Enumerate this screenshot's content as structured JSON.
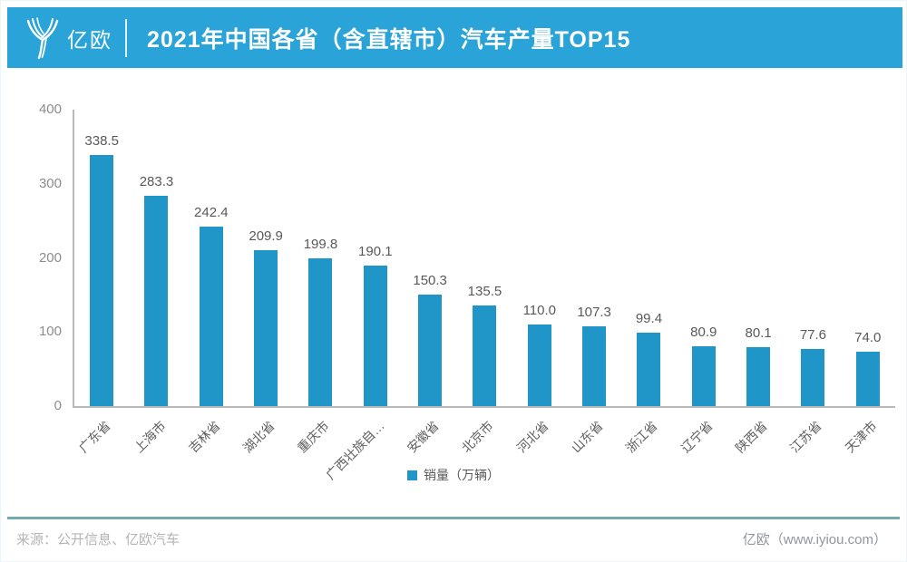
{
  "header": {
    "logo_text": "亿欧",
    "title": "2021年中国各省（含直辖市）汽车产量TOP15"
  },
  "chart_data": {
    "type": "bar",
    "title": "2021年中国各省（含直辖市）汽车产量TOP15",
    "categories": [
      "广东省",
      "上海市",
      "吉林省",
      "湖北省",
      "重庆市",
      "广西壮族自…",
      "安徽省",
      "北京市",
      "河北省",
      "山东省",
      "浙江省",
      "辽宁省",
      "陕西省",
      "江苏省",
      "天津市"
    ],
    "values": [
      338.5,
      283.3,
      242.4,
      209.9,
      199.8,
      190.1,
      150.3,
      135.5,
      110.0,
      107.3,
      99.4,
      80.9,
      80.1,
      77.6,
      74.0
    ],
    "legend_label": "销量（万辆）",
    "xlabel": "",
    "ylabel": "",
    "ylim": [
      0,
      400
    ],
    "y_ticks": [
      400,
      300,
      200,
      100,
      0
    ],
    "grid": false,
    "legend_position": "bottom-center",
    "bar_color": "#2095c8"
  },
  "footer": {
    "source": "来源：公开信息、亿欧汽车",
    "credit": "亿欧（www.iyiou.com）"
  },
  "colors": {
    "banner": "#2aa4d8",
    "bar": "#2095c8",
    "axis": "#b9b9b9",
    "value-label": "#595959",
    "tick-label": "#8c8c8c",
    "xlabel": "#5f5f5f",
    "divider": "#74a9ae",
    "source": "#b5b5b5",
    "credit": "#8f979f"
  }
}
